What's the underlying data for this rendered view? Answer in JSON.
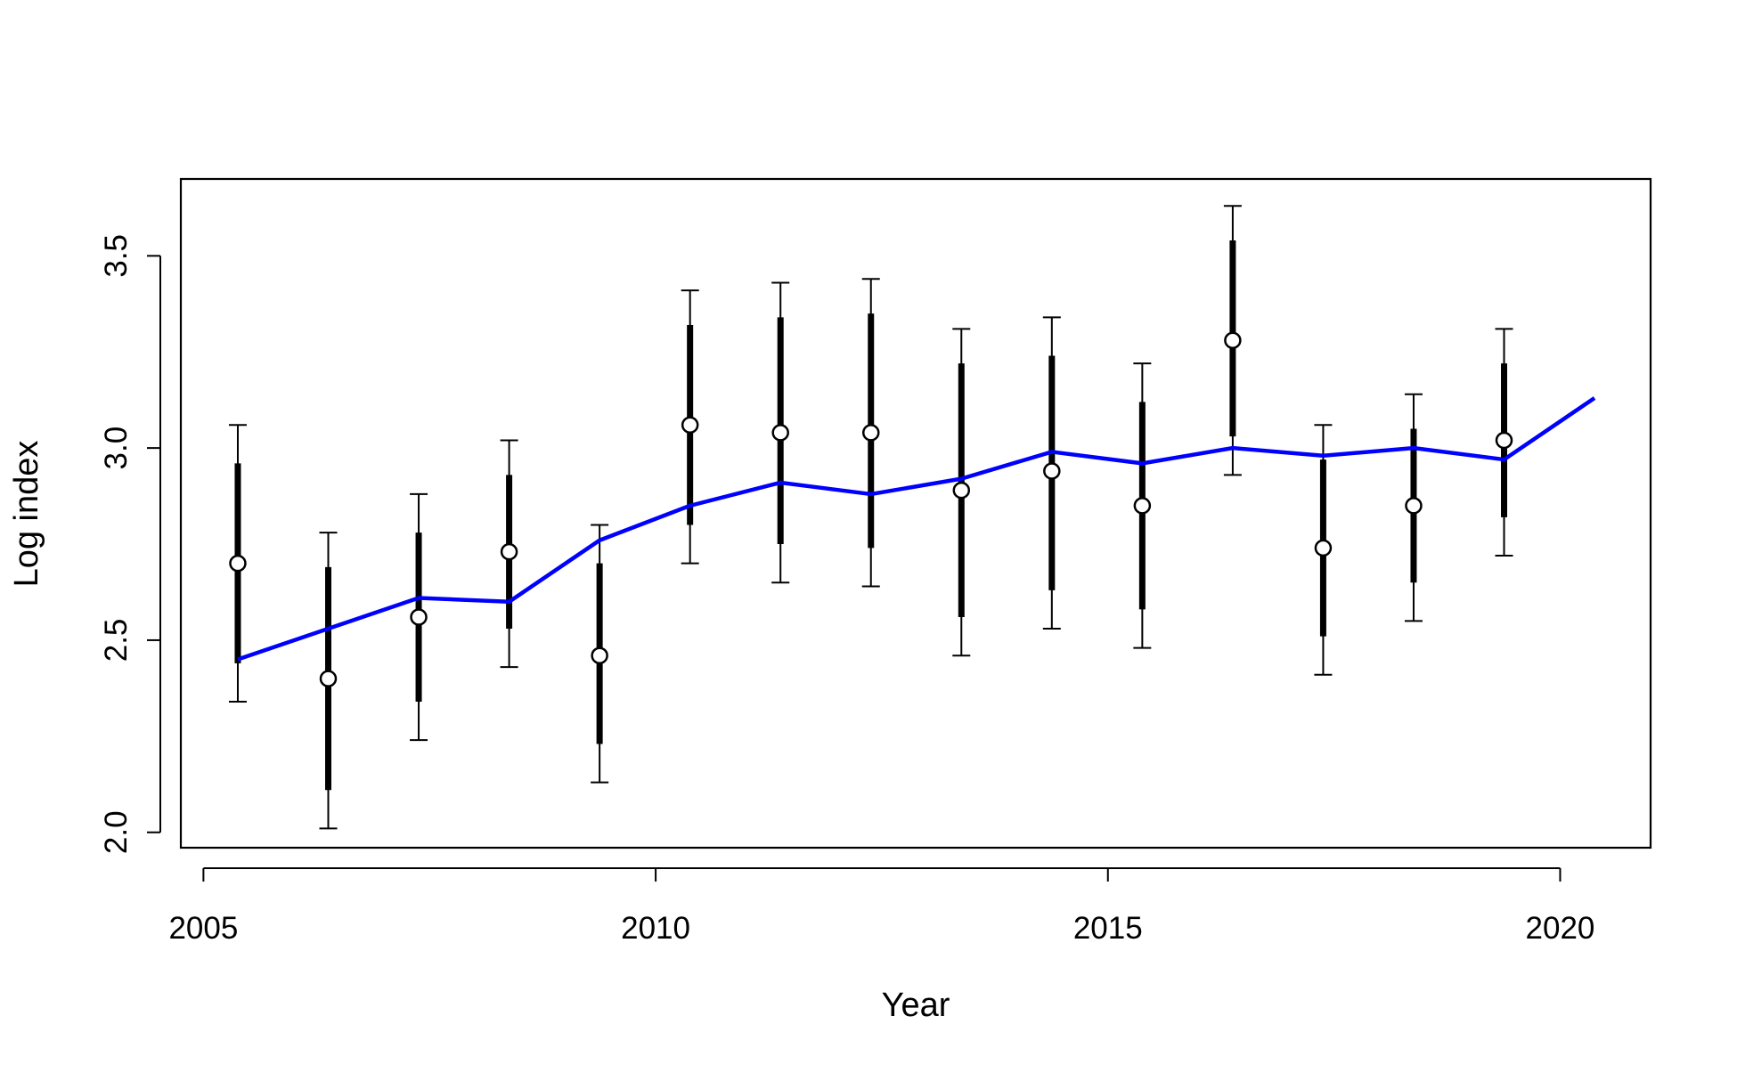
{
  "chart_data": {
    "type": "line",
    "title": "",
    "xlabel": "Year",
    "ylabel": "Log index",
    "xlim": [
      2004.75,
      2021.0
    ],
    "ylim": [
      1.96,
      3.7
    ],
    "x_ticks": [
      2005,
      2010,
      2015,
      2020
    ],
    "y_ticks": [
      2.0,
      2.5,
      3.0,
      3.5
    ],
    "x_tick_labels": [
      "2005",
      "2010",
      "2015",
      "2020"
    ],
    "y_tick_labels": [
      "2.0",
      "2.5",
      "3.0",
      "3.5"
    ],
    "grid": false,
    "observed": {
      "x": [
        2005.38,
        2006.38,
        2007.38,
        2008.38,
        2009.38,
        2010.38,
        2011.38,
        2012.38,
        2013.38,
        2014.38,
        2015.38,
        2016.38,
        2017.38,
        2018.38,
        2019.38
      ],
      "y": [
        2.7,
        2.4,
        2.56,
        2.73,
        2.46,
        3.06,
        3.04,
        3.04,
        2.89,
        2.94,
        2.85,
        3.28,
        2.74,
        2.85,
        3.02
      ],
      "inner_low": [
        2.44,
        2.11,
        2.34,
        2.53,
        2.23,
        2.8,
        2.75,
        2.74,
        2.56,
        2.63,
        2.58,
        3.03,
        2.51,
        2.65,
        2.82
      ],
      "inner_high": [
        2.96,
        2.69,
        2.78,
        2.93,
        2.7,
        3.32,
        3.34,
        3.35,
        3.22,
        3.24,
        3.12,
        3.54,
        2.97,
        3.05,
        3.22
      ],
      "outer_low": [
        2.34,
        2.01,
        2.24,
        2.43,
        2.13,
        2.7,
        2.65,
        2.64,
        2.46,
        2.53,
        2.48,
        2.93,
        2.41,
        2.55,
        2.72
      ],
      "outer_high": [
        3.06,
        2.78,
        2.88,
        3.02,
        2.8,
        3.41,
        3.43,
        3.44,
        3.31,
        3.34,
        3.22,
        3.63,
        3.06,
        3.14,
        3.31
      ],
      "marker_color": "#ffffff",
      "marker_edge_color": "#000000",
      "bar_color": "#000000"
    },
    "fitted": {
      "x": [
        2005.38,
        2006.38,
        2007.38,
        2008.38,
        2009.38,
        2010.38,
        2011.38,
        2012.38,
        2013.38,
        2014.38,
        2015.38,
        2016.38,
        2017.38,
        2018.38,
        2019.38,
        2020.38
      ],
      "y": [
        2.45,
        2.53,
        2.61,
        2.6,
        2.76,
        2.85,
        2.91,
        2.88,
        2.92,
        2.99,
        2.96,
        3.0,
        2.98,
        3.0,
        2.97,
        3.13
      ],
      "color": "#0000ff"
    }
  }
}
